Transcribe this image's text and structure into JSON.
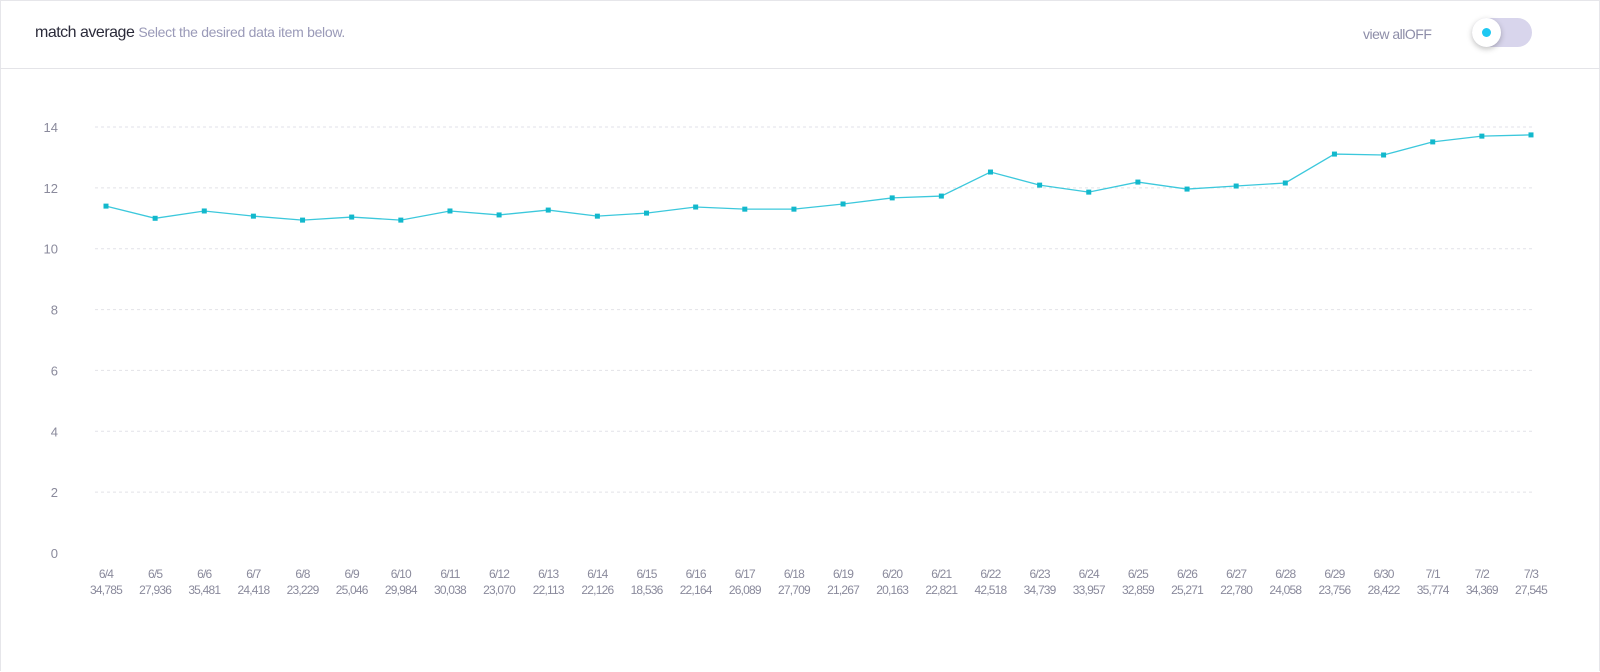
{
  "header": {
    "title": "match average",
    "subtitle": "Select the desired data item below.",
    "view_all_label": "view allOFF"
  },
  "toggle": {
    "state": "off"
  },
  "colors": {
    "line": "#3cc8dc",
    "marker": "#12b8cc",
    "grid": "#e2e2e8",
    "toggle_dot": "#1ec8f2"
  },
  "chart_data": {
    "type": "line",
    "title": "match average",
    "xlabel": "",
    "ylabel": "",
    "ylim": [
      0,
      14
    ],
    "yticks": [
      0,
      2,
      4,
      6,
      8,
      10,
      12,
      14
    ],
    "grid": true,
    "categories": [
      "6/4",
      "6/5",
      "6/6",
      "6/7",
      "6/8",
      "6/9",
      "6/10",
      "6/11",
      "6/12",
      "6/13",
      "6/14",
      "6/15",
      "6/16",
      "6/17",
      "6/18",
      "6/19",
      "6/20",
      "6/21",
      "6/22",
      "6/23",
      "6/24",
      "6/25",
      "6/26",
      "6/27",
      "6/28",
      "6/29",
      "6/30",
      "7/1",
      "7/2",
      "7/3"
    ],
    "counts": [
      "34,785",
      "27,936",
      "35,481",
      "24,418",
      "23,229",
      "25,046",
      "29,984",
      "30,038",
      "23,070",
      "22,113",
      "22,126",
      "18,536",
      "22,164",
      "26,089",
      "27,709",
      "21,267",
      "20,163",
      "22,821",
      "42,518",
      "34,739",
      "33,957",
      "32,859",
      "25,271",
      "22,780",
      "24,058",
      "23,756",
      "28,422",
      "35,774",
      "34,369",
      "27,545"
    ],
    "series": [
      {
        "name": "match average",
        "values": [
          11.4,
          11.0,
          11.24,
          11.07,
          10.94,
          11.04,
          10.94,
          11.24,
          11.11,
          11.27,
          11.07,
          11.17,
          11.37,
          11.3,
          11.3,
          11.47,
          11.67,
          11.73,
          12.52,
          12.09,
          11.86,
          12.19,
          11.96,
          12.06,
          12.16,
          13.11,
          13.08,
          13.51,
          13.7,
          13.74
        ]
      }
    ]
  }
}
